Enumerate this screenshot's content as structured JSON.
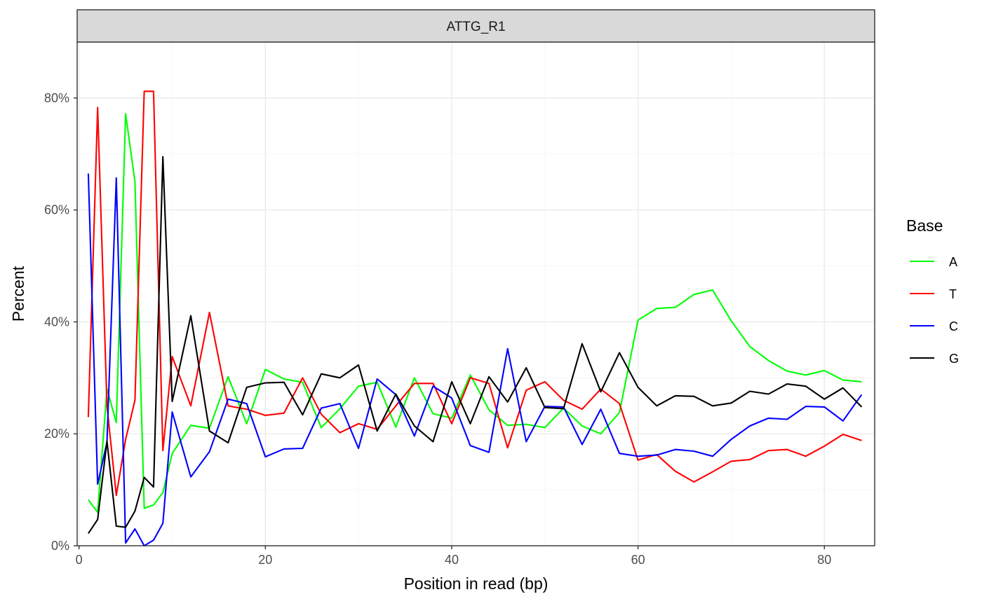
{
  "chart_data": {
    "type": "line",
    "facet_label": "ATTG_R1",
    "xlabel": "Position in read (bp)",
    "ylabel": "Percent",
    "xlim": [
      -0.2,
      85.4
    ],
    "ylim": [
      0,
      0.9
    ],
    "x_ticks": [
      0,
      20,
      40,
      60,
      80
    ],
    "x_tick_labels": [
      "0",
      "20",
      "40",
      "60",
      "80"
    ],
    "y_ticks": [
      0,
      0.2,
      0.4,
      0.6,
      0.8
    ],
    "y_tick_labels": [
      "0%",
      "20%",
      "40%",
      "60%",
      "80%"
    ],
    "grid": true,
    "legend": {
      "title": "Base",
      "position": "right"
    },
    "x": [
      1,
      2,
      3,
      4,
      5,
      6,
      7,
      8,
      9,
      10,
      12,
      14,
      16,
      18,
      20,
      22,
      24,
      26,
      28,
      30,
      32,
      34,
      36,
      38,
      40,
      42,
      44,
      46,
      48,
      50,
      52,
      54,
      56,
      58,
      60,
      62,
      64,
      66,
      68,
      70,
      72,
      74,
      76,
      78,
      80,
      82,
      84
    ],
    "series": [
      {
        "name": "A",
        "color": "#00ff00",
        "values": [
          0.082,
          0.06,
          0.28,
          0.22,
          0.772,
          0.65,
          0.067,
          0.073,
          0.095,
          0.165,
          0.215,
          0.21,
          0.302,
          0.218,
          0.315,
          0.298,
          0.292,
          0.211,
          0.245,
          0.285,
          0.292,
          0.212,
          0.3,
          0.236,
          0.228,
          0.305,
          0.243,
          0.215,
          0.217,
          0.211,
          0.246,
          0.214,
          0.2,
          0.238,
          0.403,
          0.424,
          0.426,
          0.449,
          0.457,
          0.402,
          0.356,
          0.331,
          0.312,
          0.305,
          0.313,
          0.296,
          0.293
        ]
      },
      {
        "name": "T",
        "color": "#ff0000",
        "values": [
          0.23,
          0.783,
          0.25,
          0.09,
          0.19,
          0.26,
          0.812,
          0.812,
          0.17,
          0.338,
          0.25,
          0.417,
          0.25,
          0.244,
          0.233,
          0.237,
          0.3,
          0.235,
          0.202,
          0.218,
          0.208,
          0.25,
          0.29,
          0.29,
          0.218,
          0.3,
          0.29,
          0.175,
          0.278,
          0.293,
          0.26,
          0.244,
          0.28,
          0.254,
          0.153,
          0.163,
          0.133,
          0.114,
          0.132,
          0.151,
          0.154,
          0.17,
          0.172,
          0.16,
          0.178,
          0.199,
          0.188
        ]
      },
      {
        "name": "C",
        "color": "#0000ff",
        "values": [
          0.665,
          0.11,
          0.185,
          0.657,
          0.005,
          0.03,
          0.0,
          0.01,
          0.04,
          0.239,
          0.123,
          0.168,
          0.262,
          0.254,
          0.159,
          0.173,
          0.174,
          0.246,
          0.254,
          0.174,
          0.298,
          0.27,
          0.196,
          0.285,
          0.264,
          0.179,
          0.167,
          0.352,
          0.186,
          0.249,
          0.248,
          0.181,
          0.244,
          0.165,
          0.16,
          0.162,
          0.172,
          0.169,
          0.16,
          0.19,
          0.214,
          0.228,
          0.226,
          0.249,
          0.248,
          0.223,
          0.27
        ]
      },
      {
        "name": "G",
        "color": "#000000",
        "values": [
          0.022,
          0.047,
          0.187,
          0.035,
          0.033,
          0.062,
          0.122,
          0.105,
          0.695,
          0.258,
          0.411,
          0.205,
          0.184,
          0.283,
          0.291,
          0.292,
          0.234,
          0.307,
          0.3,
          0.323,
          0.205,
          0.271,
          0.214,
          0.186,
          0.293,
          0.218,
          0.302,
          0.257,
          0.318,
          0.247,
          0.245,
          0.361,
          0.275,
          0.345,
          0.283,
          0.25,
          0.268,
          0.267,
          0.25,
          0.255,
          0.276,
          0.271,
          0.289,
          0.285,
          0.262,
          0.282,
          0.248
        ]
      }
    ]
  }
}
